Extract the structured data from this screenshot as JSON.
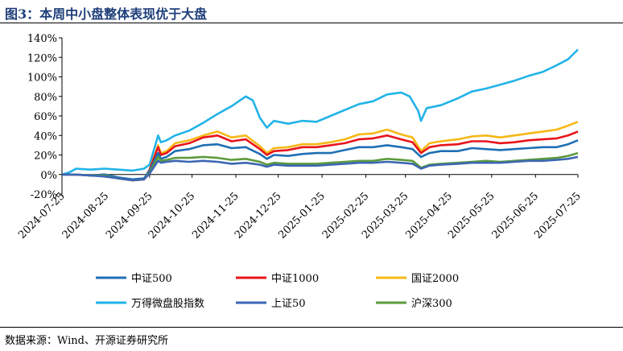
{
  "title": "图3：本周中小盘整体表现优于大盘",
  "source": "数据来源：Wind、开源证券研究所",
  "chart_data": {
    "type": "line",
    "ylim": [
      -20,
      140
    ],
    "yticks": [
      -20,
      0,
      20,
      40,
      60,
      80,
      100,
      120,
      140
    ],
    "ytick_labels": [
      "-20%",
      "0%",
      "20%",
      "40%",
      "60%",
      "80%",
      "100%",
      "120%",
      "140%"
    ],
    "xtick_labels": [
      "2024-07-25",
      "2024-08-25",
      "2024-09-25",
      "2024-10-25",
      "2024-11-25",
      "2024-12-25",
      "2025-01-25",
      "2025-02-25",
      "2025-03-25",
      "2025-04-25",
      "2025-05-25",
      "2025-06-25",
      "2025-07-25"
    ],
    "x_range": [
      0,
      365
    ],
    "xtick_positions": [
      0,
      31,
      62,
      92,
      123,
      153,
      184,
      215,
      243,
      274,
      304,
      335,
      365
    ],
    "series": [
      {
        "name": "中证500",
        "color": "#1f6fb4",
        "points": [
          [
            0,
            0
          ],
          [
            10,
            0
          ],
          [
            20,
            -1
          ],
          [
            30,
            0
          ],
          [
            40,
            -3
          ],
          [
            50,
            -5
          ],
          [
            58,
            -4
          ],
          [
            62,
            4
          ],
          [
            68,
            22
          ],
          [
            70,
            16
          ],
          [
            74,
            18
          ],
          [
            80,
            24
          ],
          [
            90,
            26
          ],
          [
            100,
            30
          ],
          [
            110,
            31
          ],
          [
            120,
            27
          ],
          [
            130,
            28
          ],
          [
            140,
            21
          ],
          [
            145,
            16
          ],
          [
            150,
            20
          ],
          [
            160,
            19
          ],
          [
            170,
            21
          ],
          [
            180,
            22
          ],
          [
            190,
            22
          ],
          [
            200,
            25
          ],
          [
            210,
            28
          ],
          [
            220,
            28
          ],
          [
            230,
            30
          ],
          [
            240,
            28
          ],
          [
            248,
            26
          ],
          [
            254,
            18
          ],
          [
            260,
            22
          ],
          [
            268,
            24
          ],
          [
            280,
            24
          ],
          [
            290,
            27
          ],
          [
            300,
            26
          ],
          [
            310,
            25
          ],
          [
            320,
            26
          ],
          [
            330,
            27
          ],
          [
            340,
            28
          ],
          [
            350,
            28
          ],
          [
            358,
            31
          ],
          [
            365,
            35
          ]
        ]
      },
      {
        "name": "中证1000",
        "color": "#e8141b",
        "points": [
          [
            0,
            0
          ],
          [
            10,
            0
          ],
          [
            20,
            -1
          ],
          [
            30,
            0
          ],
          [
            40,
            -4
          ],
          [
            50,
            -6
          ],
          [
            58,
            -5
          ],
          [
            62,
            5
          ],
          [
            68,
            28
          ],
          [
            70,
            20
          ],
          [
            74,
            22
          ],
          [
            80,
            29
          ],
          [
            90,
            32
          ],
          [
            100,
            38
          ],
          [
            110,
            40
          ],
          [
            120,
            34
          ],
          [
            130,
            36
          ],
          [
            140,
            26
          ],
          [
            145,
            20
          ],
          [
            150,
            24
          ],
          [
            160,
            25
          ],
          [
            170,
            28
          ],
          [
            180,
            28
          ],
          [
            190,
            30
          ],
          [
            200,
            32
          ],
          [
            210,
            36
          ],
          [
            220,
            37
          ],
          [
            230,
            40
          ],
          [
            240,
            36
          ],
          [
            248,
            33
          ],
          [
            254,
            22
          ],
          [
            260,
            28
          ],
          [
            268,
            30
          ],
          [
            280,
            31
          ],
          [
            290,
            34
          ],
          [
            300,
            34
          ],
          [
            310,
            32
          ],
          [
            320,
            33
          ],
          [
            330,
            35
          ],
          [
            340,
            36
          ],
          [
            350,
            37
          ],
          [
            358,
            40
          ],
          [
            365,
            44
          ]
        ]
      },
      {
        "name": "国证2000",
        "color": "#f6b817",
        "points": [
          [
            0,
            0
          ],
          [
            10,
            0
          ],
          [
            20,
            -1
          ],
          [
            30,
            0
          ],
          [
            40,
            -4
          ],
          [
            50,
            -6
          ],
          [
            58,
            -5
          ],
          [
            62,
            5
          ],
          [
            68,
            30
          ],
          [
            70,
            22
          ],
          [
            74,
            24
          ],
          [
            80,
            32
          ],
          [
            90,
            35
          ],
          [
            100,
            40
          ],
          [
            110,
            44
          ],
          [
            120,
            38
          ],
          [
            130,
            40
          ],
          [
            140,
            29
          ],
          [
            145,
            22
          ],
          [
            150,
            27
          ],
          [
            160,
            28
          ],
          [
            170,
            31
          ],
          [
            180,
            31
          ],
          [
            190,
            33
          ],
          [
            200,
            36
          ],
          [
            210,
            41
          ],
          [
            220,
            42
          ],
          [
            230,
            46
          ],
          [
            240,
            41
          ],
          [
            248,
            38
          ],
          [
            254,
            24
          ],
          [
            260,
            32
          ],
          [
            268,
            34
          ],
          [
            280,
            36
          ],
          [
            290,
            39
          ],
          [
            300,
            40
          ],
          [
            310,
            38
          ],
          [
            320,
            40
          ],
          [
            330,
            42
          ],
          [
            340,
            44
          ],
          [
            350,
            46
          ],
          [
            358,
            50
          ],
          [
            365,
            54
          ]
        ]
      },
      {
        "name": "万得微盘股指数",
        "color": "#21b3e8",
        "points": [
          [
            0,
            0
          ],
          [
            5,
            2
          ],
          [
            10,
            6
          ],
          [
            20,
            5
          ],
          [
            30,
            6
          ],
          [
            40,
            5
          ],
          [
            50,
            4
          ],
          [
            58,
            6
          ],
          [
            62,
            10
          ],
          [
            68,
            40
          ],
          [
            70,
            33
          ],
          [
            74,
            35
          ],
          [
            80,
            40
          ],
          [
            90,
            45
          ],
          [
            100,
            53
          ],
          [
            110,
            62
          ],
          [
            120,
            70
          ],
          [
            130,
            80
          ],
          [
            135,
            76
          ],
          [
            140,
            58
          ],
          [
            145,
            48
          ],
          [
            150,
            55
          ],
          [
            160,
            52
          ],
          [
            170,
            55
          ],
          [
            180,
            54
          ],
          [
            190,
            60
          ],
          [
            200,
            66
          ],
          [
            210,
            72
          ],
          [
            220,
            75
          ],
          [
            230,
            82
          ],
          [
            240,
            84
          ],
          [
            246,
            80
          ],
          [
            252,
            65
          ],
          [
            254,
            55
          ],
          [
            258,
            68
          ],
          [
            268,
            71
          ],
          [
            280,
            78
          ],
          [
            290,
            85
          ],
          [
            300,
            88
          ],
          [
            310,
            92
          ],
          [
            320,
            96
          ],
          [
            330,
            101
          ],
          [
            340,
            105
          ],
          [
            350,
            112
          ],
          [
            358,
            118
          ],
          [
            365,
            128
          ]
        ]
      },
      {
        "name": "上证50",
        "color": "#3d66b4",
        "points": [
          [
            0,
            0
          ],
          [
            10,
            0
          ],
          [
            20,
            -1
          ],
          [
            30,
            -2
          ],
          [
            40,
            -4
          ],
          [
            50,
            -6
          ],
          [
            58,
            -5
          ],
          [
            62,
            1
          ],
          [
            68,
            14
          ],
          [
            70,
            12
          ],
          [
            74,
            13
          ],
          [
            80,
            14
          ],
          [
            90,
            13
          ],
          [
            100,
            14
          ],
          [
            110,
            13
          ],
          [
            120,
            11
          ],
          [
            130,
            12
          ],
          [
            140,
            10
          ],
          [
            145,
            8
          ],
          [
            150,
            10
          ],
          [
            160,
            9
          ],
          [
            170,
            9
          ],
          [
            180,
            9
          ],
          [
            190,
            10
          ],
          [
            200,
            11
          ],
          [
            210,
            12
          ],
          [
            220,
            12
          ],
          [
            230,
            13
          ],
          [
            240,
            12
          ],
          [
            248,
            11
          ],
          [
            254,
            6
          ],
          [
            260,
            9
          ],
          [
            268,
            10
          ],
          [
            280,
            11
          ],
          [
            290,
            12
          ],
          [
            300,
            12
          ],
          [
            310,
            12
          ],
          [
            320,
            13
          ],
          [
            330,
            14
          ],
          [
            340,
            14
          ],
          [
            350,
            15
          ],
          [
            358,
            16
          ],
          [
            365,
            18
          ]
        ]
      },
      {
        "name": "沪深300",
        "color": "#5d9b3d",
        "points": [
          [
            0,
            0
          ],
          [
            10,
            0
          ],
          [
            20,
            -1
          ],
          [
            30,
            -1
          ],
          [
            40,
            -4
          ],
          [
            50,
            -6
          ],
          [
            58,
            -5
          ],
          [
            62,
            2
          ],
          [
            68,
            18
          ],
          [
            70,
            14
          ],
          [
            74,
            15
          ],
          [
            80,
            17
          ],
          [
            90,
            17
          ],
          [
            100,
            18
          ],
          [
            110,
            17
          ],
          [
            120,
            15
          ],
          [
            130,
            16
          ],
          [
            140,
            13
          ],
          [
            145,
            10
          ],
          [
            150,
            12
          ],
          [
            160,
            11
          ],
          [
            170,
            11
          ],
          [
            180,
            11
          ],
          [
            190,
            12
          ],
          [
            200,
            13
          ],
          [
            210,
            14
          ],
          [
            220,
            14
          ],
          [
            230,
            16
          ],
          [
            240,
            15
          ],
          [
            248,
            14
          ],
          [
            254,
            7
          ],
          [
            260,
            10
          ],
          [
            268,
            11
          ],
          [
            280,
            12
          ],
          [
            290,
            13
          ],
          [
            300,
            14
          ],
          [
            310,
            13
          ],
          [
            320,
            14
          ],
          [
            330,
            15
          ],
          [
            340,
            16
          ],
          [
            350,
            17
          ],
          [
            358,
            19
          ],
          [
            365,
            22
          ]
        ]
      }
    ]
  }
}
